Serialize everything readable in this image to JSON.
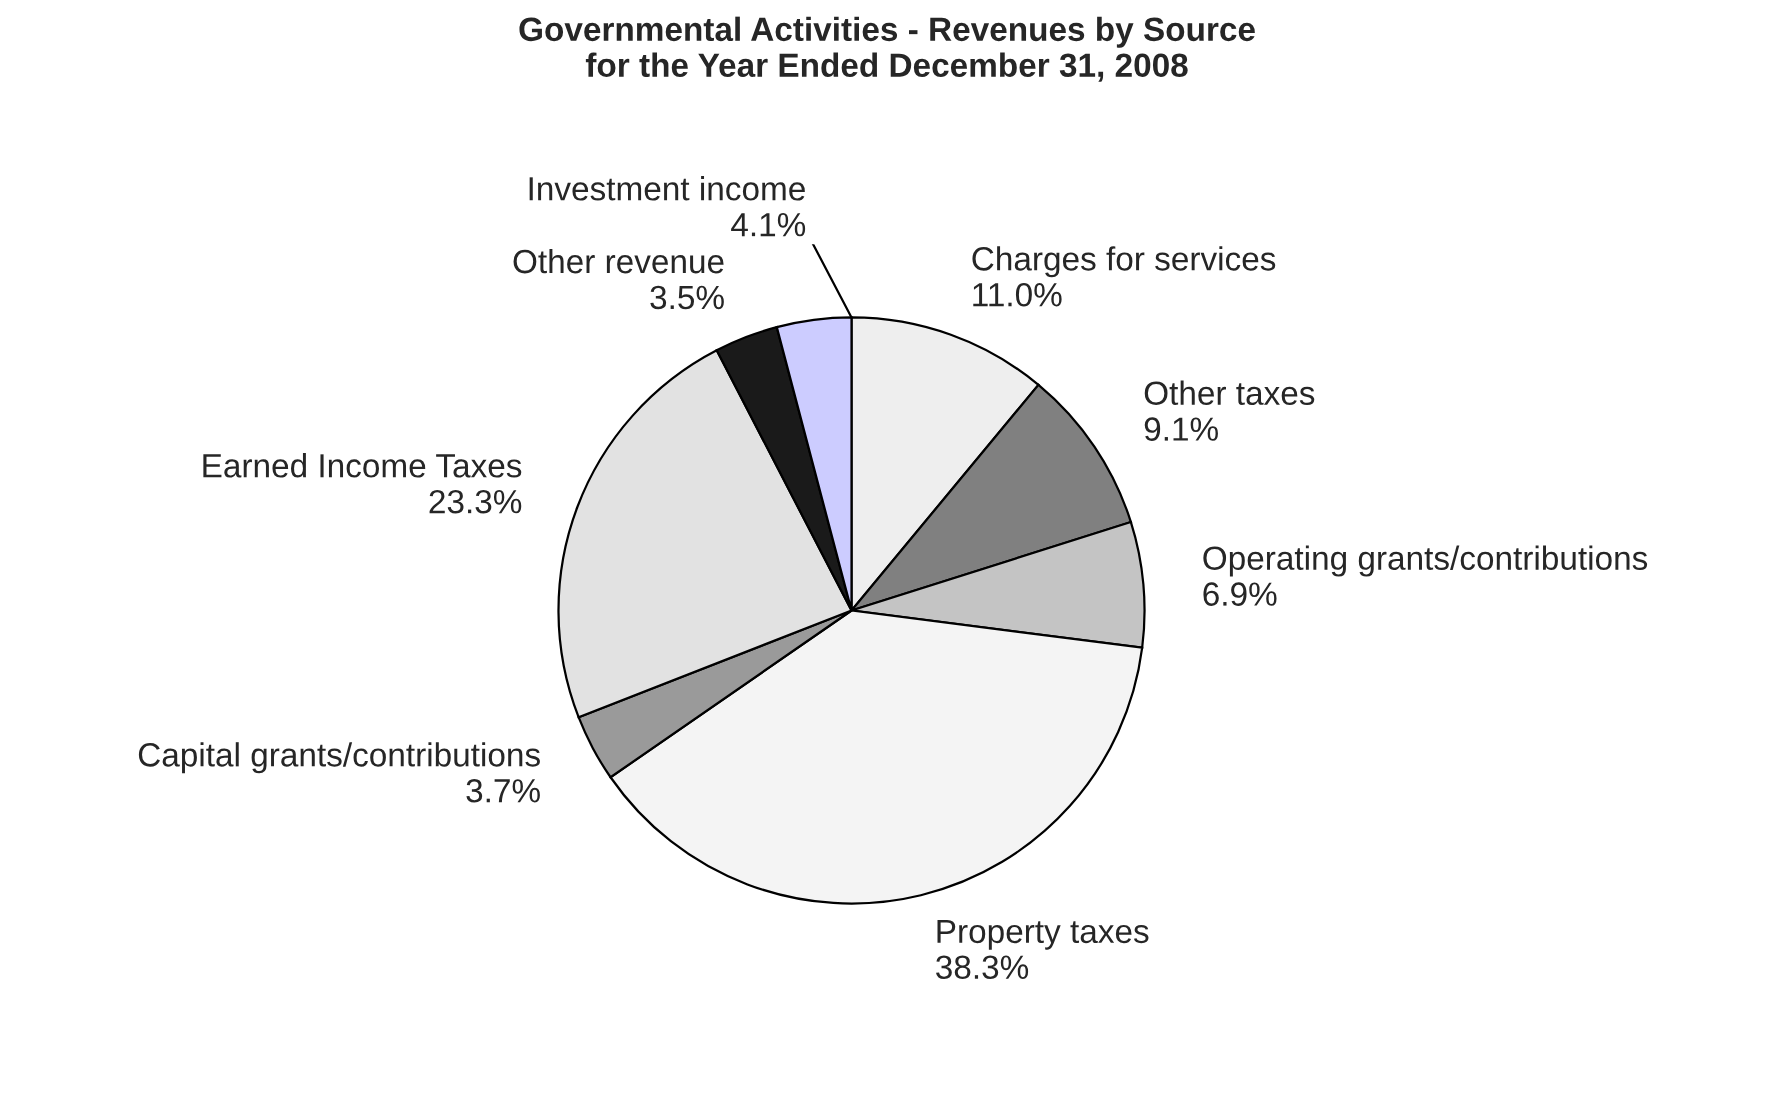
{
  "chart_data": {
    "type": "pie",
    "title": "Governmental Activities - Revenues by Source\nfor the Year Ended December 31, 2008",
    "categories": [
      "Charges for services",
      "Other taxes",
      "Operating grants/contributions",
      "Property taxes",
      "Capital grants/contributions",
      "Earned Income Taxes",
      "Other revenue",
      "Investment income"
    ],
    "values": [
      11.0,
      9.1,
      6.9,
      38.3,
      3.7,
      23.3,
      3.5,
      4.1
    ],
    "value_labels": [
      "11.0%",
      "9.1%",
      "6.9%",
      "38.3%",
      "3.7%",
      "23.3%",
      "3.5%",
      "4.1%"
    ],
    "colors": [
      "#eeeeee",
      "#808080",
      "#c4c4c4",
      "#f4f4f4",
      "#9a9a9a",
      "#e2e2e2",
      "#1a1a1a",
      "#ccccff"
    ],
    "legend": false
  }
}
